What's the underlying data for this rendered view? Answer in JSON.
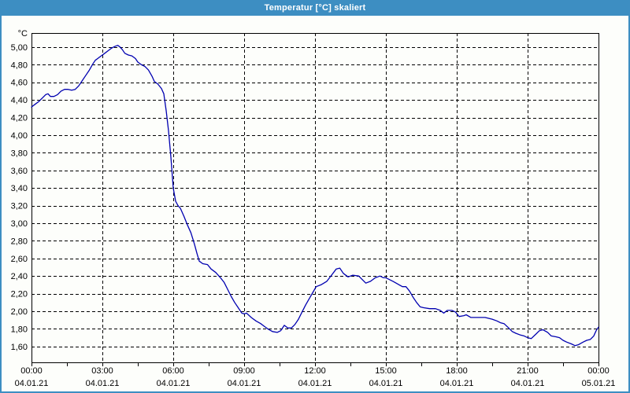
{
  "window": {
    "title": "Temperatur [°C] skaliert"
  },
  "colors": {
    "title_bar": "#3d8ec2",
    "title_text": "#ffffff",
    "window_border": "#3d8ec2",
    "window_background": "#fdfefb",
    "grid": "#000000",
    "frame": "#000000",
    "axis_text": "#000000",
    "line": "#0000b0"
  },
  "chart_data": {
    "type": "line",
    "title": "Temperatur [°C] skaliert",
    "ylabel": "°C",
    "xlabel": "",
    "grid": "dashed",
    "legend_position": "none",
    "ylim": [
      1.42,
      5.16
    ],
    "xlim_hours": [
      0,
      24
    ],
    "y_ticks": [
      1.6,
      1.8,
      2.0,
      2.2,
      2.4,
      2.6,
      2.8,
      3.0,
      3.2,
      3.4,
      3.6,
      3.8,
      4.0,
      4.2,
      4.4,
      4.6,
      4.8,
      5.0
    ],
    "y_tick_labels": [
      "1,60",
      "1,80",
      "2,00",
      "2,20",
      "2,40",
      "2,60",
      "2,80",
      "3,00",
      "3,20",
      "3,40",
      "3,60",
      "3,80",
      "4,00",
      "4,20",
      "4,40",
      "4,60",
      "4,80",
      "5,00"
    ],
    "x_major_ticks_hours": [
      0,
      3,
      6,
      9,
      12,
      15,
      18,
      21,
      24
    ],
    "x_tick_time_labels": [
      "00:00",
      "03:00",
      "06:00",
      "09:00",
      "12:00",
      "15:00",
      "18:00",
      "21:00",
      "00:00"
    ],
    "x_tick_date_labels": [
      "04.01.21",
      "04.01.21",
      "04.01.21",
      "04.01.21",
      "04.01.21",
      "04.01.21",
      "04.01.21",
      "04.01.21",
      "05.01.21"
    ],
    "x_minor_tick_step_hours": 1.5,
    "series": [
      {
        "x_hours": [
          0,
          0.15,
          0.3,
          0.45,
          0.6,
          0.7,
          0.8,
          0.95,
          1.1,
          1.25,
          1.4,
          1.55,
          1.7,
          1.85,
          2,
          2.15,
          2.3,
          2.45,
          2.6,
          2.7,
          2.8,
          2.95,
          3.1,
          3.25,
          3.4,
          3.55,
          3.65,
          3.75,
          3.85,
          3.95,
          4.1,
          4.25,
          4.4,
          4.5,
          4.65,
          4.8,
          4.95,
          5.1,
          5.2,
          5.35,
          5.5,
          5.6,
          5.7,
          5.8,
          5.9,
          6,
          6.1,
          6.2,
          6.3,
          6.45,
          6.6,
          6.75,
          6.9,
          7,
          7.1,
          7.25,
          7.45,
          7.6,
          7.8,
          8,
          8.15,
          8.3,
          8.45,
          8.6,
          8.75,
          8.9,
          9,
          9.1,
          9.3,
          9.5,
          9.7,
          9.85,
          10,
          10.2,
          10.4,
          10.55,
          10.7,
          10.85,
          11,
          11.15,
          11.3,
          11.45,
          11.6,
          11.75,
          11.9,
          12.05,
          12.25,
          12.5,
          12.7,
          12.9,
          13.05,
          13.2,
          13.4,
          13.6,
          13.85,
          14.15,
          14.35,
          14.55,
          14.75,
          14.9,
          15,
          15.3,
          15.5,
          15.7,
          15.85,
          16,
          16.15,
          16.3,
          16.45,
          16.6,
          16.85,
          17.1,
          17.3,
          17.45,
          17.6,
          17.8,
          17.95,
          18.1,
          18.3,
          18.4,
          18.6,
          18.85,
          19.2,
          19.5,
          19.7,
          19.85,
          20,
          20.2,
          20.35,
          20.5,
          20.7,
          20.85,
          21,
          21.15,
          21.35,
          21.5,
          21.65,
          21.85,
          22,
          22.2,
          22.35,
          22.5,
          22.65,
          22.85,
          23,
          23.15,
          23.35,
          23.5,
          23.65,
          23.8,
          23.9,
          24
        ],
        "values": [
          4.32,
          4.35,
          4.38,
          4.42,
          4.46,
          4.47,
          4.44,
          4.44,
          4.46,
          4.5,
          4.52,
          4.52,
          4.51,
          4.52,
          4.56,
          4.62,
          4.68,
          4.74,
          4.81,
          4.85,
          4.87,
          4.9,
          4.93,
          4.96,
          4.99,
          5.01,
          5.02,
          5.0,
          4.97,
          4.93,
          4.91,
          4.9,
          4.87,
          4.83,
          4.8,
          4.78,
          4.74,
          4.67,
          4.61,
          4.58,
          4.53,
          4.47,
          4.28,
          4.05,
          3.75,
          3.4,
          3.25,
          3.2,
          3.17,
          3.08,
          2.98,
          2.89,
          2.76,
          2.66,
          2.57,
          2.54,
          2.53,
          2.48,
          2.44,
          2.38,
          2.33,
          2.25,
          2.17,
          2.1,
          2.04,
          1.98,
          1.97,
          1.98,
          1.93,
          1.89,
          1.86,
          1.83,
          1.8,
          1.77,
          1.76,
          1.78,
          1.84,
          1.81,
          1.81,
          1.85,
          1.91,
          1.99,
          2.07,
          2.14,
          2.21,
          2.28,
          2.3,
          2.34,
          2.41,
          2.48,
          2.49,
          2.43,
          2.39,
          2.41,
          2.4,
          2.32,
          2.34,
          2.38,
          2.4,
          2.38,
          2.38,
          2.34,
          2.31,
          2.28,
          2.28,
          2.23,
          2.16,
          2.1,
          2.05,
          2.04,
          2.03,
          2.03,
          2.01,
          1.98,
          2.01,
          2.01,
          1.99,
          1.94,
          1.95,
          1.96,
          1.93,
          1.93,
          1.93,
          1.91,
          1.89,
          1.87,
          1.86,
          1.81,
          1.77,
          1.75,
          1.73,
          1.72,
          1.7,
          1.69,
          1.74,
          1.78,
          1.79,
          1.76,
          1.72,
          1.71,
          1.7,
          1.67,
          1.65,
          1.63,
          1.61,
          1.62,
          1.65,
          1.67,
          1.68,
          1.72,
          1.78,
          1.82
        ]
      }
    ]
  }
}
